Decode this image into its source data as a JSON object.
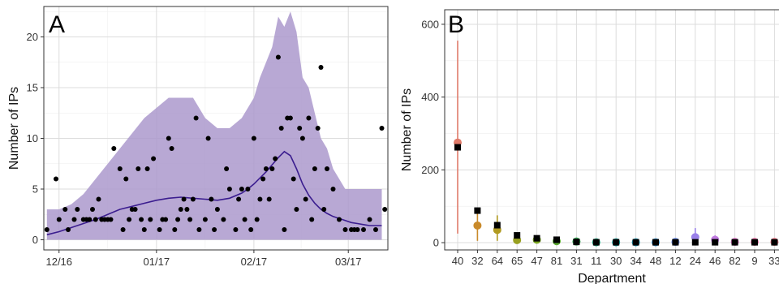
{
  "chart_data": [
    {
      "panel": "A",
      "type": "scatter",
      "ylabel": "Number of IPs",
      "xlabel": "",
      "x_ticks": [
        "12/16",
        "01/17",
        "02/17",
        "03/17"
      ],
      "x_tick_values": [
        4,
        36,
        68,
        99
      ],
      "xlim": [
        -1,
        112
      ],
      "ylim": [
        -1,
        23
      ],
      "y_ticks": [
        "0",
        "5",
        "10",
        "15",
        "20"
      ],
      "y_tick_values": [
        0,
        5,
        10,
        15,
        20
      ],
      "colors": {
        "band": "#ab99cc",
        "line": "#3b1d8f",
        "points": "#000000"
      },
      "band": {
        "x": [
          0,
          4,
          8,
          12,
          16,
          20,
          24,
          28,
          32,
          36,
          40,
          44,
          48,
          52,
          56,
          60,
          64,
          66,
          68,
          70,
          72,
          74,
          76,
          78,
          80,
          82,
          84,
          86,
          88,
          90,
          92,
          94,
          96,
          98,
          100,
          102,
          104,
          106,
          108,
          110
        ],
        "upper": [
          3,
          3,
          3.5,
          4.5,
          6,
          7.5,
          9,
          10.5,
          12,
          13,
          14,
          14,
          14,
          12,
          11,
          11,
          12,
          13,
          14,
          16,
          17.5,
          19,
          22,
          21,
          22.5,
          20.5,
          16,
          15,
          12.5,
          10,
          9,
          7,
          6,
          5,
          5,
          5,
          5,
          5,
          5,
          5
        ],
        "lower": [
          0,
          0,
          0,
          0,
          0,
          0,
          0,
          0,
          0,
          0,
          0,
          0,
          0,
          0,
          0,
          0,
          0,
          0,
          0,
          0,
          0,
          0,
          0,
          0,
          0,
          0,
          0,
          0,
          0,
          0,
          0,
          0,
          0,
          0,
          0,
          0,
          0,
          0,
          0,
          0
        ]
      },
      "line": {
        "x": [
          0,
          4,
          8,
          12,
          16,
          20,
          24,
          28,
          32,
          36,
          40,
          44,
          48,
          52,
          56,
          60,
          64,
          66,
          68,
          70,
          72,
          74,
          76,
          78,
          80,
          82,
          84,
          86,
          88,
          90,
          92,
          94,
          96,
          98,
          100,
          102,
          104,
          106,
          108,
          110
        ],
        "y": [
          0.5,
          0.8,
          1.2,
          1.6,
          2.0,
          2.5,
          3.0,
          3.3,
          3.6,
          3.9,
          4.1,
          4.2,
          4.1,
          4.0,
          3.9,
          4.1,
          4.6,
          5.0,
          5.5,
          6.1,
          6.7,
          7.4,
          8.1,
          8.7,
          8.3,
          7.0,
          5.5,
          4.4,
          3.6,
          3.0,
          2.6,
          2.3,
          2.1,
          1.9,
          1.7,
          1.6,
          1.5,
          1.4,
          1.4,
          1.4
        ]
      },
      "points": {
        "x": [
          0,
          3,
          4,
          6,
          7,
          9,
          10,
          12,
          13,
          14,
          15,
          16,
          17,
          18,
          19,
          20,
          21,
          22,
          24,
          25,
          26,
          27,
          28,
          29,
          30,
          31,
          32,
          33,
          34,
          35,
          37,
          38,
          39,
          40,
          41,
          42,
          43,
          44,
          45,
          46,
          47,
          48,
          49,
          50,
          52,
          53,
          54,
          55,
          56,
          58,
          59,
          60,
          62,
          63,
          64,
          65,
          66,
          67,
          68,
          69,
          70,
          71,
          72,
          73,
          74,
          75,
          76,
          77,
          78,
          79,
          80,
          81,
          82,
          83,
          84,
          85,
          86,
          87,
          88,
          89,
          90,
          91,
          92,
          94,
          96,
          98,
          100,
          101,
          102,
          104,
          106,
          108,
          110,
          111
        ],
        "y": [
          1,
          6,
          2,
          3,
          1,
          2,
          3,
          2,
          2,
          2,
          3,
          2,
          4,
          2,
          2,
          2,
          2,
          9,
          7,
          1,
          6,
          2,
          3,
          3,
          7,
          2,
          1,
          7,
          2,
          8,
          1,
          2,
          2,
          10,
          9,
          1,
          2,
          3,
          4,
          3,
          2,
          4,
          12,
          1,
          2,
          10,
          4,
          1,
          3,
          2,
          7,
          5,
          1,
          4,
          5,
          2,
          5,
          1,
          10,
          2,
          4,
          6,
          7,
          4,
          7,
          8,
          18,
          11,
          1,
          12,
          12,
          6,
          3,
          11,
          10,
          4,
          12,
          2,
          7,
          11,
          17,
          3,
          7,
          5,
          2,
          1,
          1,
          1,
          1,
          1,
          2,
          1,
          11,
          3
        ]
      }
    },
    {
      "panel": "B",
      "type": "scatter",
      "ylabel": "Number of IPs",
      "xlabel": "Department",
      "categories": [
        "40",
        "32",
        "64",
        "65",
        "47",
        "81",
        "31",
        "11",
        "30",
        "34",
        "48",
        "12",
        "24",
        "46",
        "82",
        "9",
        "33"
      ],
      "ylim": [
        -20,
        640
      ],
      "y_ticks": [
        "0",
        "200",
        "400",
        "600"
      ],
      "y_tick_values": [
        0,
        200,
        400,
        600
      ],
      "series": [
        {
          "name": "",
          "marker": "circle",
          "values": [
            275,
            47,
            35,
            7,
            8,
            4,
            3,
            1,
            1,
            1,
            1,
            2,
            15,
            8,
            2,
            2,
            2
          ],
          "lower": [
            25,
            5,
            5,
            1,
            2,
            1,
            0,
            0,
            0,
            0,
            0,
            0,
            2,
            1,
            0,
            0,
            0
          ],
          "upper": [
            555,
            90,
            75,
            15,
            16,
            9,
            7,
            3,
            3,
            3,
            3,
            5,
            40,
            20,
            6,
            6,
            6
          ],
          "colors": [
            "#e07b6a",
            "#c98a2a",
            "#b09a20",
            "#98a020",
            "#7aa620",
            "#5aaa30",
            "#3aae5a",
            "#22b08a",
            "#18aeaa",
            "#20a8c8",
            "#3a9cde",
            "#6a8eea",
            "#9a80ea",
            "#c07ae0",
            "#de74c8",
            "#ec72a8",
            "#ee7888"
          ]
        },
        {
          "name": "",
          "marker": "square",
          "color": "#000000",
          "values": [
            262,
            88,
            48,
            20,
            12,
            8,
            2,
            1,
            1,
            1,
            1,
            1,
            1,
            1,
            1,
            1,
            1
          ]
        }
      ]
    }
  ]
}
